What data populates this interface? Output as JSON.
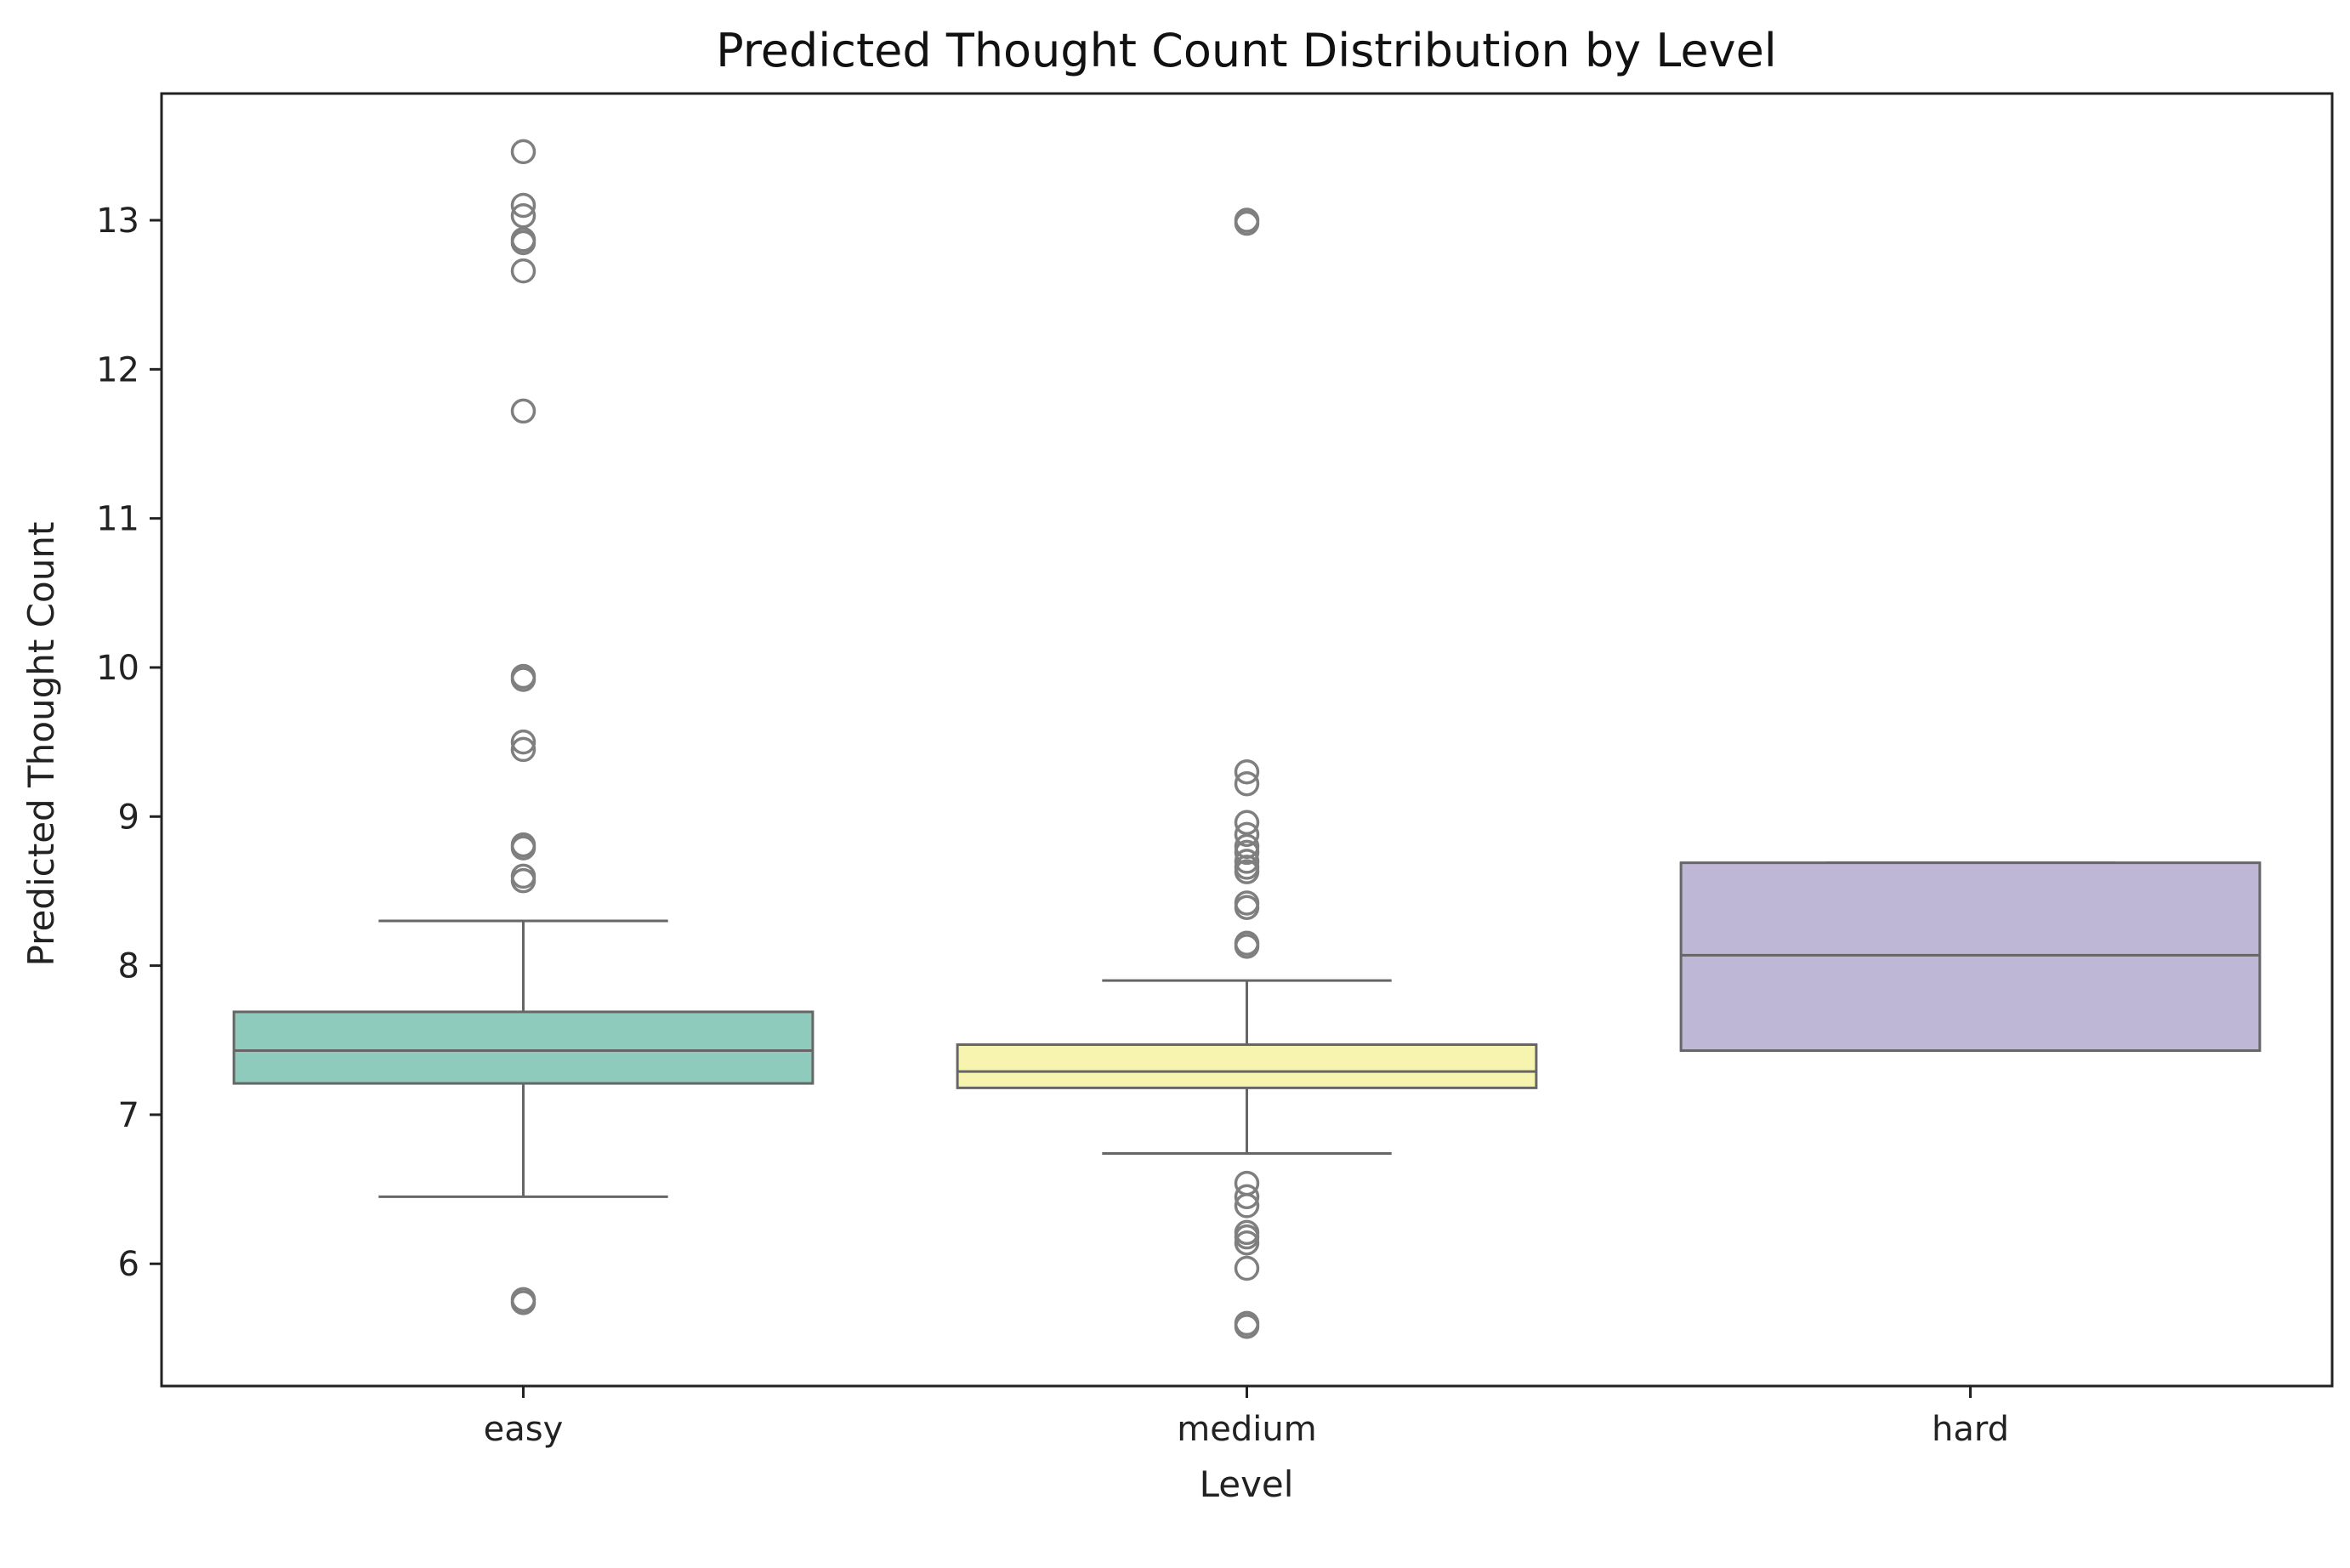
{
  "chart_data": {
    "type": "box",
    "title": "Predicted Thought Count Distribution by Level",
    "xlabel": "Level",
    "ylabel": "Predicted Thought Count",
    "categories": [
      "easy",
      "medium",
      "hard"
    ],
    "ylim": [
      5.18,
      13.85
    ],
    "yticks": [
      6,
      7,
      8,
      9,
      10,
      11,
      12,
      13
    ],
    "grid": false,
    "legend": "none",
    "colors": {
      "easy": "#8fcbbd",
      "medium": "#f7f4b0",
      "hard": "#beb8d6",
      "edge": "#666666",
      "outlier": "#7f7f7f",
      "axis": "#222222"
    },
    "boxes": [
      {
        "category": "easy",
        "whisker_low": 6.45,
        "q1": 7.21,
        "median": 7.43,
        "q3": 7.69,
        "whisker_high": 8.3,
        "outliers": [
          13.46,
          13.1,
          13.03,
          12.87,
          12.85,
          12.66,
          11.72,
          9.94,
          9.92,
          9.5,
          9.45,
          8.81,
          8.79,
          8.6,
          8.57,
          5.76,
          5.74
        ]
      },
      {
        "category": "medium",
        "whisker_low": 6.74,
        "q1": 7.18,
        "median": 7.29,
        "q3": 7.47,
        "whisker_high": 7.9,
        "outliers": [
          13.0,
          12.98,
          9.3,
          9.22,
          8.96,
          8.88,
          8.8,
          8.76,
          8.7,
          8.66,
          8.63,
          8.42,
          8.39,
          8.15,
          8.13,
          6.54,
          6.45,
          6.39,
          6.21,
          6.18,
          6.14,
          5.97,
          5.6,
          5.58
        ]
      },
      {
        "category": "hard",
        "whisker_low": 7.43,
        "q1": 7.43,
        "median": 8.07,
        "q3": 8.69,
        "whisker_high": 8.69,
        "outliers": []
      }
    ]
  }
}
